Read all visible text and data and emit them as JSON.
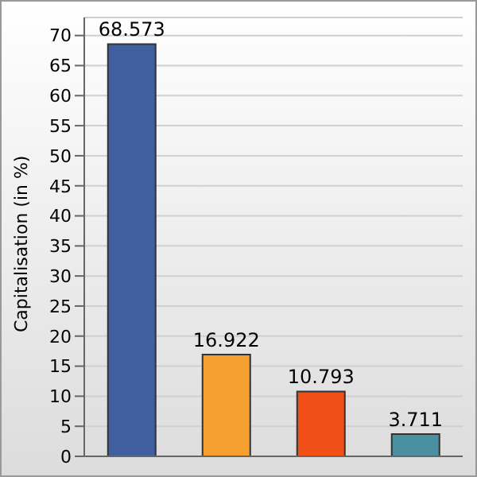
{
  "chart_data": {
    "type": "bar",
    "ylabel": "Capitalisation (in %)",
    "categories": [
      null,
      null,
      null,
      null
    ],
    "values": [
      68.573,
      16.922,
      10.793,
      3.711
    ],
    "colors": [
      "#3f5fa0",
      "#f5a030",
      "#f05018",
      "#4a90a0"
    ],
    "ylim": [
      0,
      73
    ],
    "yticks": [
      0,
      5,
      10,
      15,
      20,
      25,
      30,
      35,
      40,
      45,
      50,
      55,
      60,
      65,
      70
    ],
    "grid": "y",
    "data_labels": true
  }
}
